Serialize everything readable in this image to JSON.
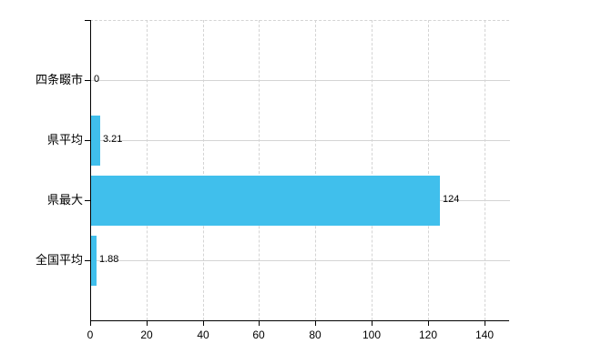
{
  "chart_data": {
    "type": "bar",
    "orientation": "horizontal",
    "title": "",
    "xlabel": "",
    "ylabel": "",
    "categories": [
      "四条畷市",
      "県平均",
      "県最大",
      "全国平均"
    ],
    "values": [
      0,
      3.21,
      124,
      1.88
    ],
    "value_labels": [
      "0",
      "3.21",
      "124",
      "1.88"
    ],
    "x_ticks": [
      0,
      20,
      40,
      60,
      80,
      100,
      120,
      140
    ],
    "x_tick_labels": [
      "0",
      "20",
      "40",
      "60",
      "80",
      "100",
      "120",
      "140"
    ],
    "xlim": [
      0,
      148.8
    ],
    "legend": "none",
    "grid": {
      "vertical": "dashed",
      "horizontal": "solid",
      "top_border": "dashed"
    },
    "colors": {
      "bar": "#40BFEC",
      "axis": "#000000",
      "gridline": "#d4d4d4",
      "text": "#000000",
      "background": "#ffffff"
    }
  }
}
